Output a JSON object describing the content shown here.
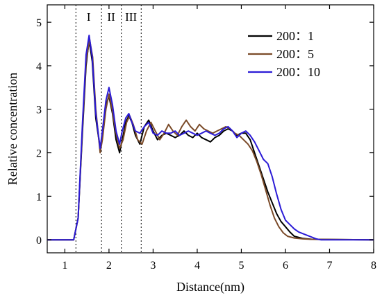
{
  "chart_data": {
    "type": "line",
    "xlabel": "Distance(nm)",
    "ylabel": "Relative concentration",
    "xlim": [
      0.6,
      8
    ],
    "ylim": [
      -0.3,
      5.4
    ],
    "xticks": [
      1,
      2,
      3,
      4,
      5,
      6,
      7,
      8
    ],
    "xtick_labels": [
      "1",
      "2",
      "3",
      "4",
      "5",
      "6",
      "7",
      "8"
    ],
    "yticks": [
      0,
      1,
      2,
      3,
      4,
      5
    ],
    "ytick_labels": [
      "0",
      "1",
      "2",
      "3",
      "4",
      "5"
    ],
    "grid": false,
    "legend_position": "top-right",
    "region_lines": [
      1.25,
      1.83,
      2.28,
      2.73
    ],
    "regions": [
      {
        "label": "I",
        "x": 1.54
      },
      {
        "label": "II",
        "x": 2.05
      },
      {
        "label": "III",
        "x": 2.5
      }
    ],
    "series": [
      {
        "name": "200：1",
        "color": "#000000",
        "x": [
          0.6,
          1.2,
          1.3,
          1.4,
          1.48,
          1.55,
          1.62,
          1.7,
          1.8,
          1.85,
          1.93,
          2.0,
          2.08,
          2.16,
          2.24,
          2.3,
          2.38,
          2.45,
          2.52,
          2.6,
          2.7,
          2.8,
          2.9,
          3.0,
          3.1,
          3.2,
          3.3,
          3.4,
          3.5,
          3.6,
          3.7,
          3.8,
          3.9,
          4.0,
          4.1,
          4.2,
          4.3,
          4.4,
          4.5,
          4.6,
          4.7,
          4.8,
          4.9,
          5.0,
          5.1,
          5.2,
          5.3,
          5.4,
          5.5,
          5.6,
          5.7,
          5.8,
          5.9,
          6.0,
          6.1,
          6.2,
          6.4,
          6.6,
          8.0
        ],
        "y": [
          0,
          0,
          0.5,
          2.5,
          4.0,
          4.6,
          4.1,
          2.8,
          2.1,
          2.4,
          3.1,
          3.3,
          2.9,
          2.3,
          2.0,
          2.3,
          2.7,
          2.85,
          2.7,
          2.4,
          2.2,
          2.6,
          2.75,
          2.5,
          2.3,
          2.4,
          2.45,
          2.4,
          2.35,
          2.4,
          2.5,
          2.4,
          2.35,
          2.45,
          2.35,
          2.3,
          2.25,
          2.35,
          2.4,
          2.5,
          2.55,
          2.5,
          2.4,
          2.45,
          2.45,
          2.3,
          2.0,
          1.7,
          1.4,
          1.1,
          0.85,
          0.6,
          0.42,
          0.3,
          0.18,
          0.08,
          0.03,
          0.01,
          0
        ]
      },
      {
        "name": "200：5",
        "color": "#7a4a28",
        "x": [
          0.6,
          1.2,
          1.3,
          1.4,
          1.48,
          1.56,
          1.63,
          1.7,
          1.8,
          1.85,
          1.93,
          2.0,
          2.07,
          2.15,
          2.24,
          2.32,
          2.4,
          2.47,
          2.55,
          2.65,
          2.75,
          2.85,
          2.95,
          3.05,
          3.15,
          3.25,
          3.35,
          3.45,
          3.55,
          3.65,
          3.75,
          3.85,
          3.95,
          4.05,
          4.15,
          4.25,
          4.35,
          4.45,
          4.55,
          4.65,
          4.75,
          4.85,
          4.95,
          5.05,
          5.15,
          5.25,
          5.35,
          5.45,
          5.55,
          5.65,
          5.75,
          5.85,
          5.95,
          6.05,
          6.2,
          6.4,
          6.6,
          8.0
        ],
        "y": [
          0,
          0,
          0.5,
          2.6,
          4.1,
          4.6,
          4.2,
          3.0,
          2.0,
          2.3,
          3.0,
          3.35,
          3.0,
          2.5,
          2.1,
          2.3,
          2.7,
          2.85,
          2.65,
          2.3,
          2.2,
          2.5,
          2.7,
          2.5,
          2.3,
          2.45,
          2.65,
          2.5,
          2.4,
          2.6,
          2.75,
          2.6,
          2.5,
          2.65,
          2.55,
          2.5,
          2.45,
          2.5,
          2.55,
          2.6,
          2.55,
          2.45,
          2.4,
          2.3,
          2.2,
          2.05,
          1.8,
          1.5,
          1.15,
          0.8,
          0.5,
          0.3,
          0.16,
          0.08,
          0.04,
          0.02,
          0.01,
          0
        ]
      },
      {
        "name": "200：10",
        "color": "#2b1bd6",
        "x": [
          0.6,
          1.2,
          1.3,
          1.4,
          1.48,
          1.55,
          1.62,
          1.7,
          1.8,
          1.85,
          1.93,
          2.0,
          2.08,
          2.16,
          2.24,
          2.3,
          2.38,
          2.45,
          2.52,
          2.6,
          2.7,
          2.8,
          2.9,
          3.0,
          3.1,
          3.2,
          3.3,
          3.4,
          3.5,
          3.6,
          3.7,
          3.8,
          3.9,
          4.0,
          4.1,
          4.2,
          4.3,
          4.4,
          4.5,
          4.6,
          4.7,
          4.8,
          4.9,
          5.0,
          5.1,
          5.2,
          5.3,
          5.4,
          5.5,
          5.6,
          5.7,
          5.8,
          5.9,
          6.0,
          6.1,
          6.2,
          6.3,
          6.5,
          6.7,
          6.8,
          8.0
        ],
        "y": [
          0,
          0,
          0.5,
          2.7,
          4.25,
          4.7,
          4.2,
          2.9,
          2.1,
          2.5,
          3.2,
          3.5,
          3.1,
          2.5,
          2.2,
          2.5,
          2.8,
          2.9,
          2.7,
          2.5,
          2.45,
          2.6,
          2.7,
          2.45,
          2.4,
          2.5,
          2.45,
          2.45,
          2.5,
          2.4,
          2.45,
          2.5,
          2.45,
          2.4,
          2.45,
          2.5,
          2.45,
          2.4,
          2.45,
          2.55,
          2.6,
          2.5,
          2.35,
          2.45,
          2.5,
          2.4,
          2.25,
          2.05,
          1.85,
          1.75,
          1.45,
          1.05,
          0.7,
          0.45,
          0.35,
          0.25,
          0.18,
          0.1,
          0.02,
          0,
          0
        ]
      }
    ]
  }
}
